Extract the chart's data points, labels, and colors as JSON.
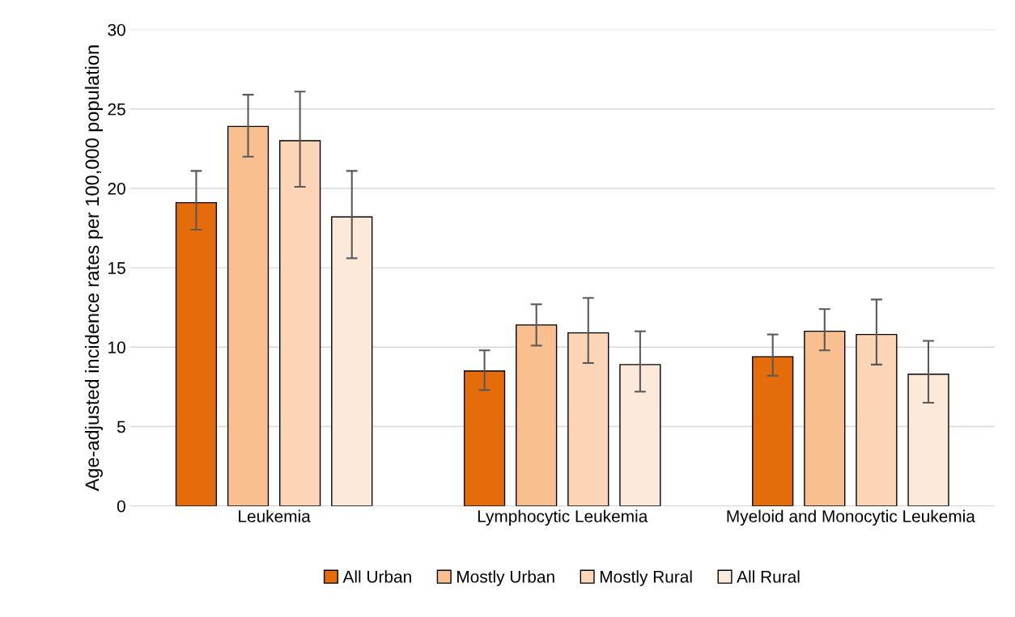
{
  "chart_data": {
    "type": "bar",
    "ylabel": "Age-adjusted incidence rates per 100,000 population",
    "categories": [
      "Leukemia",
      "Lymphocytic Leukemia",
      "Myeloid and Monocytic Leukemia"
    ],
    "series": [
      {
        "name": "All Urban",
        "color": "#e46c0a",
        "values": [
          19.1,
          8.5,
          9.4
        ],
        "errors": [
          [
            17.4,
            21.1
          ],
          [
            7.3,
            9.8
          ],
          [
            8.2,
            10.8
          ]
        ]
      },
      {
        "name": "Mostly Urban",
        "color": "#f9bf8f",
        "values": [
          23.9,
          11.4,
          11.0
        ],
        "errors": [
          [
            22.0,
            25.9
          ],
          [
            10.1,
            12.7
          ],
          [
            9.8,
            12.4
          ]
        ]
      },
      {
        "name": "Mostly Rural",
        "color": "#fbd5b5",
        "values": [
          23.0,
          10.9,
          10.8
        ],
        "errors": [
          [
            20.1,
            26.1
          ],
          [
            9.0,
            13.1
          ],
          [
            8.9,
            13.0
          ]
        ]
      },
      {
        "name": "All Rural",
        "color": "#fde9d9",
        "values": [
          18.2,
          8.9,
          8.3
        ],
        "errors": [
          [
            15.6,
            21.1
          ],
          [
            7.2,
            11.0
          ],
          [
            6.5,
            10.4
          ]
        ]
      }
    ],
    "ylim": [
      0,
      30
    ],
    "yticks": [
      0,
      5,
      10,
      15,
      20,
      25,
      30
    ],
    "grid": "y",
    "legend": "bottom"
  }
}
